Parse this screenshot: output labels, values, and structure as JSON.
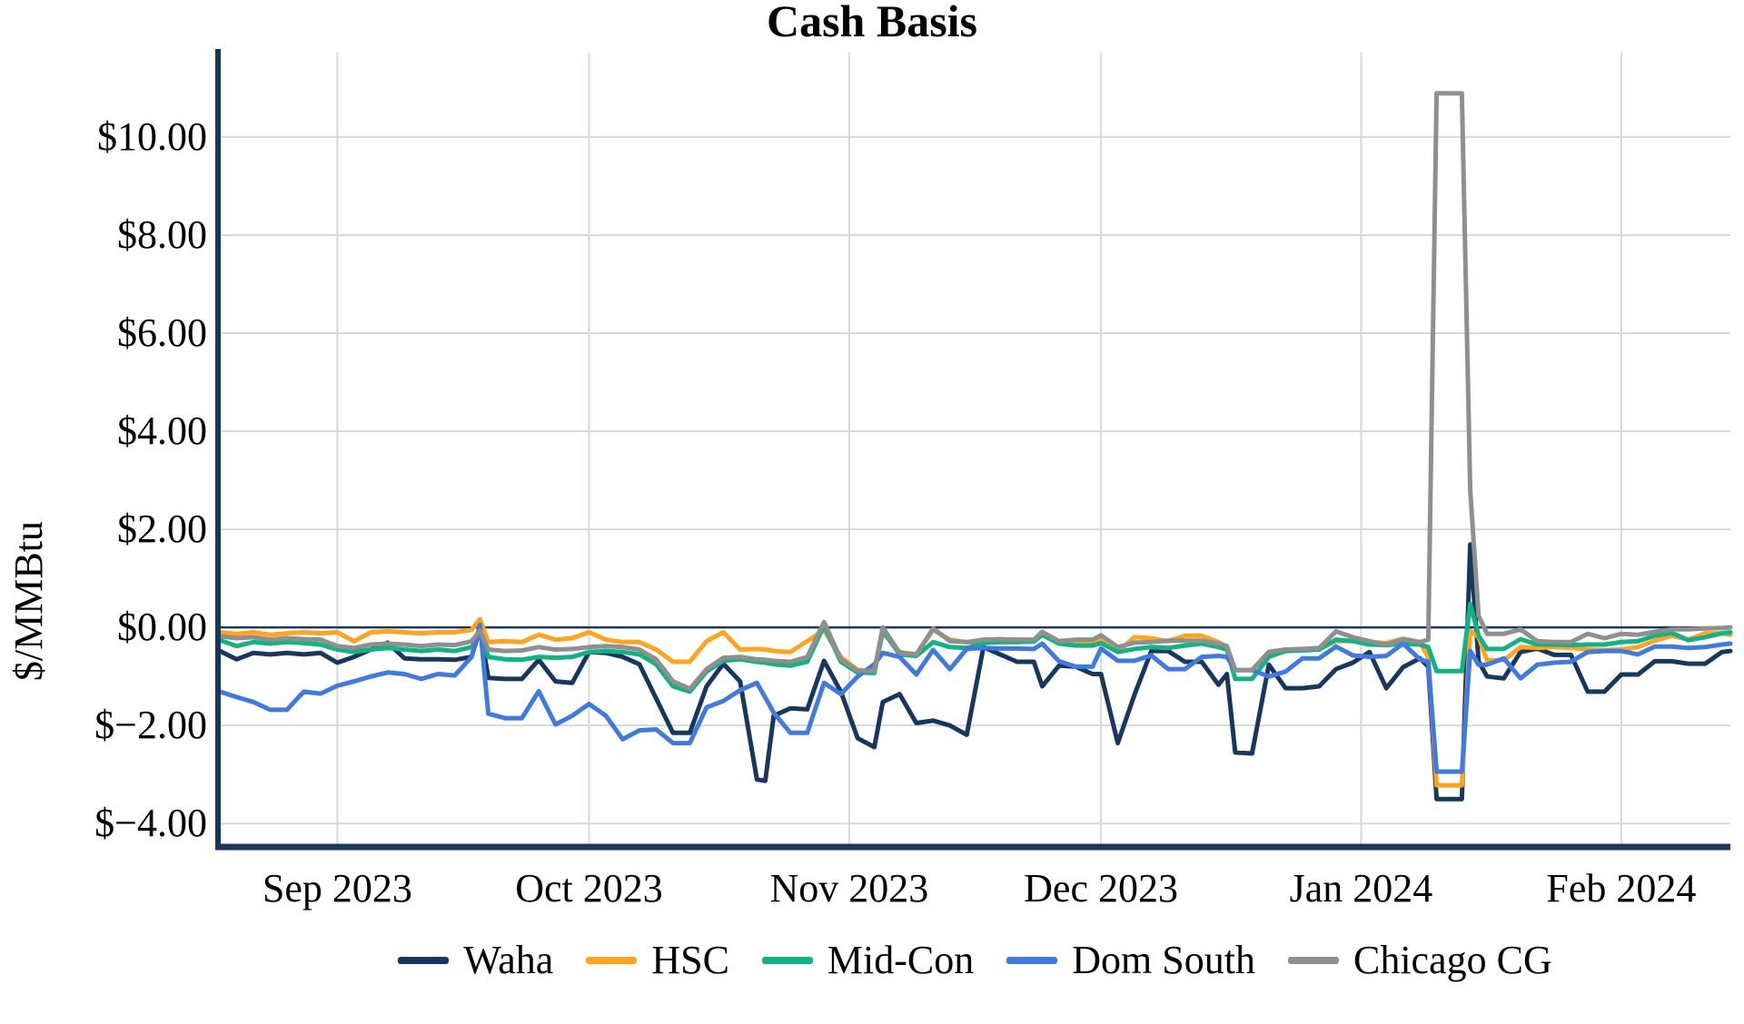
{
  "title": "Cash Basis",
  "y_axis": {
    "label": "$/MMBtu",
    "ticks": [
      {
        "label": "$10.00",
        "value": 10
      },
      {
        "label": "$8.00",
        "value": 8
      },
      {
        "label": "$6.00",
        "value": 6
      },
      {
        "label": "$4.00",
        "value": 4
      },
      {
        "label": "$2.00",
        "value": 2
      },
      {
        "label": "$0.00",
        "value": 0
      },
      {
        "label": "$−2.00",
        "value": -2
      },
      {
        "label": "$−4.00",
        "value": -4
      }
    ]
  },
  "x_axis": {
    "ticks": [
      {
        "label": "Sep 2023",
        "date": "2023-09-01"
      },
      {
        "label": "Oct 2023",
        "date": "2023-10-01"
      },
      {
        "label": "Nov 2023",
        "date": "2023-11-01"
      },
      {
        "label": "Dec 2023",
        "date": "2023-12-01"
      },
      {
        "label": "Jan 2024",
        "date": "2024-01-01"
      },
      {
        "label": "Feb 2024",
        "date": "2024-02-01"
      }
    ]
  },
  "colors": {
    "axis": "#17375E",
    "zero_line": "#17375E",
    "grid": "#D9D9D9",
    "background": "#FFFFFF"
  },
  "legend": {
    "items": [
      {
        "label": "Waha",
        "color": "#17375E"
      },
      {
        "label": "HSC",
        "color": "#FFA41C"
      },
      {
        "label": "Mid-Con",
        "color": "#10B384"
      },
      {
        "label": "Dom South",
        "color": "#3F7AE3"
      },
      {
        "label": "Chicago CG",
        "color": "#8F8F8F"
      }
    ]
  },
  "chart_data": {
    "type": "line",
    "title": "Cash Basis",
    "xlabel": "",
    "ylabel": "$/MMBtu",
    "xlim": [
      "2023-08-18",
      "2024-02-14"
    ],
    "ylim": [
      -4.44,
      11.72
    ],
    "grid": true,
    "zero_line": true,
    "legend_position": "bottom",
    "dates": [
      "2023-08-18",
      "2023-08-20",
      "2023-08-22",
      "2023-08-24",
      "2023-08-26",
      "2023-08-28",
      "2023-08-30",
      "2023-09-01",
      "2023-09-03",
      "2023-09-05",
      "2023-09-07",
      "2023-09-09",
      "2023-09-11",
      "2023-09-13",
      "2023-09-15",
      "2023-09-17",
      "2023-09-18",
      "2023-09-19",
      "2023-09-21",
      "2023-09-23",
      "2023-09-25",
      "2023-09-27",
      "2023-09-29",
      "2023-10-01",
      "2023-10-03",
      "2023-10-05",
      "2023-10-07",
      "2023-10-09",
      "2023-10-11",
      "2023-10-13",
      "2023-10-15",
      "2023-10-17",
      "2023-10-19",
      "2023-10-21",
      "2023-10-22",
      "2023-10-23",
      "2023-10-25",
      "2023-10-27",
      "2023-10-29",
      "2023-10-31",
      "2023-11-02",
      "2023-11-04",
      "2023-11-05",
      "2023-11-07",
      "2023-11-09",
      "2023-11-11",
      "2023-11-13",
      "2023-11-15",
      "2023-11-17",
      "2023-11-19",
      "2023-11-21",
      "2023-11-23",
      "2023-11-24",
      "2023-11-26",
      "2023-11-28",
      "2023-11-30",
      "2023-12-01",
      "2023-12-03",
      "2023-12-05",
      "2023-12-07",
      "2023-12-09",
      "2023-12-11",
      "2023-12-13",
      "2023-12-15",
      "2023-12-16",
      "2023-12-17",
      "2023-12-19",
      "2023-12-21",
      "2023-12-23",
      "2023-12-25",
      "2023-12-27",
      "2023-12-29",
      "2023-12-31",
      "2024-01-02",
      "2024-01-04",
      "2024-01-06",
      "2024-01-08",
      "2024-01-09",
      "2024-01-10",
      "2024-01-11",
      "2024-01-12",
      "2024-01-13",
      "2024-01-14",
      "2024-01-15",
      "2024-01-16",
      "2024-01-18",
      "2024-01-20",
      "2024-01-22",
      "2024-01-24",
      "2024-01-26",
      "2024-01-28",
      "2024-01-30",
      "2024-02-01",
      "2024-02-03",
      "2024-02-05",
      "2024-02-07",
      "2024-02-09",
      "2024-02-11",
      "2024-02-13",
      "2024-02-14"
    ],
    "series": [
      {
        "name": "Waha",
        "color": "#17375E",
        "values": [
          -0.48,
          -0.65,
          -0.52,
          -0.55,
          -0.52,
          -0.55,
          -0.52,
          -0.72,
          -0.6,
          -0.45,
          -0.31,
          -0.63,
          -0.65,
          -0.65,
          -0.66,
          -0.6,
          -0.02,
          -1.03,
          -1.05,
          -1.05,
          -0.66,
          -1.1,
          -1.13,
          -0.5,
          -0.52,
          -0.6,
          -0.75,
          -1.45,
          -2.15,
          -2.15,
          -1.2,
          -0.74,
          -1.1,
          -3.1,
          -3.13,
          -1.8,
          -1.65,
          -1.67,
          -0.68,
          -1.31,
          -2.26,
          -2.44,
          -1.52,
          -1.36,
          -1.95,
          -1.9,
          -2.0,
          -2.19,
          -0.4,
          -0.55,
          -0.7,
          -0.7,
          -1.2,
          -0.78,
          -0.8,
          -0.95,
          -0.95,
          -2.36,
          -1.37,
          -0.48,
          -0.48,
          -0.7,
          -0.7,
          -1.17,
          -0.95,
          -2.55,
          -2.57,
          -0.76,
          -1.24,
          -1.24,
          -1.2,
          -0.85,
          -0.72,
          -0.5,
          -1.24,
          -0.81,
          -0.63,
          -0.8,
          -3.5,
          -3.5,
          -3.5,
          -3.5,
          1.69,
          -0.69,
          -1.0,
          -1.04,
          -0.5,
          -0.43,
          -0.56,
          -0.56,
          -1.31,
          -1.31,
          -0.96,
          -0.96,
          -0.69,
          -0.69,
          -0.74,
          -0.74,
          -0.5,
          -0.48
        ]
      },
      {
        "name": "HSC",
        "color": "#FFA41C",
        "values": [
          -0.1,
          -0.13,
          -0.1,
          -0.15,
          -0.12,
          -0.1,
          -0.12,
          -0.1,
          -0.28,
          -0.1,
          -0.08,
          -0.1,
          -0.12,
          -0.1,
          -0.1,
          -0.05,
          0.17,
          -0.3,
          -0.28,
          -0.3,
          -0.15,
          -0.25,
          -0.22,
          -0.1,
          -0.25,
          -0.3,
          -0.3,
          -0.45,
          -0.7,
          -0.7,
          -0.28,
          -0.1,
          -0.45,
          -0.44,
          -0.45,
          -0.48,
          -0.5,
          -0.28,
          -0.06,
          -0.6,
          -0.87,
          -0.88,
          -0.1,
          -0.5,
          -0.55,
          -0.05,
          -0.25,
          -0.3,
          -0.3,
          -0.3,
          -0.3,
          -0.28,
          -0.15,
          -0.33,
          -0.3,
          -0.3,
          -0.25,
          -0.5,
          -0.2,
          -0.22,
          -0.28,
          -0.17,
          -0.17,
          -0.3,
          -0.4,
          -0.87,
          -0.87,
          -0.5,
          -0.45,
          -0.45,
          -0.44,
          -0.28,
          -0.28,
          -0.3,
          -0.32,
          -0.23,
          -0.3,
          -0.61,
          -3.22,
          -3.22,
          -3.22,
          -3.22,
          -0.07,
          -0.2,
          -0.67,
          -0.67,
          -0.4,
          -0.42,
          -0.4,
          -0.42,
          -0.45,
          -0.46,
          -0.45,
          -0.4,
          -0.27,
          -0.17,
          -0.25,
          -0.12,
          -0.12,
          -0.15
        ]
      },
      {
        "name": "Mid-Con",
        "color": "#10B384",
        "values": [
          -0.26,
          -0.38,
          -0.3,
          -0.33,
          -0.3,
          -0.32,
          -0.35,
          -0.45,
          -0.5,
          -0.45,
          -0.42,
          -0.45,
          -0.48,
          -0.45,
          -0.48,
          -0.4,
          -0.1,
          -0.6,
          -0.65,
          -0.66,
          -0.6,
          -0.62,
          -0.6,
          -0.5,
          -0.48,
          -0.5,
          -0.55,
          -0.75,
          -1.2,
          -1.31,
          -0.9,
          -0.68,
          -0.65,
          -0.7,
          -0.72,
          -0.75,
          -0.78,
          -0.7,
          0.04,
          -0.7,
          -0.92,
          -0.93,
          -0.06,
          -0.55,
          -0.58,
          -0.3,
          -0.4,
          -0.42,
          -0.32,
          -0.3,
          -0.3,
          -0.29,
          -0.15,
          -0.33,
          -0.37,
          -0.37,
          -0.32,
          -0.5,
          -0.44,
          -0.4,
          -0.42,
          -0.37,
          -0.33,
          -0.4,
          -0.45,
          -1.05,
          -1.05,
          -0.6,
          -0.48,
          -0.47,
          -0.45,
          -0.25,
          -0.28,
          -0.35,
          -0.36,
          -0.33,
          -0.35,
          -0.4,
          -0.89,
          -0.89,
          -0.89,
          -0.89,
          0.48,
          -0.17,
          -0.44,
          -0.44,
          -0.24,
          -0.35,
          -0.35,
          -0.36,
          -0.35,
          -0.35,
          -0.3,
          -0.28,
          -0.17,
          -0.11,
          -0.26,
          -0.2,
          -0.12,
          -0.1
        ]
      },
      {
        "name": "Dom South",
        "color": "#3F7AE3",
        "values": [
          -1.31,
          -1.42,
          -1.52,
          -1.68,
          -1.68,
          -1.31,
          -1.35,
          -1.19,
          -1.1,
          -1.0,
          -0.92,
          -0.95,
          -1.05,
          -0.95,
          -0.98,
          -0.6,
          0.05,
          -1.76,
          -1.85,
          -1.85,
          -1.3,
          -1.98,
          -1.8,
          -1.56,
          -1.8,
          -2.28,
          -2.1,
          -2.08,
          -2.36,
          -2.36,
          -1.63,
          -1.5,
          -1.28,
          -1.13,
          -1.43,
          -1.74,
          -2.15,
          -2.15,
          -1.13,
          -1.36,
          -1.0,
          -0.75,
          -0.52,
          -0.6,
          -0.96,
          -0.46,
          -0.85,
          -0.44,
          -0.42,
          -0.43,
          -0.43,
          -0.44,
          -0.33,
          -0.69,
          -0.8,
          -0.8,
          -0.43,
          -0.68,
          -0.68,
          -0.57,
          -0.85,
          -0.85,
          -0.6,
          -0.58,
          -0.6,
          -0.87,
          -0.87,
          -1.0,
          -0.9,
          -0.63,
          -0.63,
          -0.39,
          -0.57,
          -0.6,
          -0.58,
          -0.33,
          -0.65,
          -0.7,
          -2.94,
          -2.94,
          -2.94,
          -2.94,
          -0.48,
          -0.76,
          -0.76,
          -0.63,
          -1.04,
          -0.76,
          -0.72,
          -0.7,
          -0.5,
          -0.48,
          -0.48,
          -0.55,
          -0.39,
          -0.39,
          -0.42,
          -0.4,
          -0.35,
          -0.33
        ]
      },
      {
        "name": "Chicago CG",
        "color": "#8F8F8F",
        "values": [
          -0.18,
          -0.22,
          -0.2,
          -0.25,
          -0.22,
          -0.24,
          -0.25,
          -0.38,
          -0.42,
          -0.35,
          -0.33,
          -0.35,
          -0.38,
          -0.35,
          -0.36,
          -0.28,
          -0.07,
          -0.45,
          -0.48,
          -0.47,
          -0.4,
          -0.45,
          -0.44,
          -0.4,
          -0.38,
          -0.4,
          -0.45,
          -0.65,
          -1.1,
          -1.25,
          -0.85,
          -0.62,
          -0.6,
          -0.65,
          -0.66,
          -0.68,
          -0.7,
          -0.6,
          0.11,
          -0.65,
          -0.88,
          -0.88,
          0.0,
          -0.52,
          -0.55,
          -0.02,
          -0.28,
          -0.3,
          -0.25,
          -0.24,
          -0.25,
          -0.25,
          -0.09,
          -0.28,
          -0.25,
          -0.25,
          -0.16,
          -0.4,
          -0.31,
          -0.3,
          -0.27,
          -0.27,
          -0.27,
          -0.33,
          -0.38,
          -0.87,
          -0.87,
          -0.5,
          -0.45,
          -0.44,
          -0.42,
          -0.08,
          -0.2,
          -0.28,
          -0.35,
          -0.24,
          -0.3,
          -0.25,
          10.89,
          10.89,
          10.89,
          10.89,
          2.8,
          0.24,
          -0.13,
          -0.13,
          -0.04,
          -0.28,
          -0.3,
          -0.3,
          -0.13,
          -0.22,
          -0.13,
          -0.15,
          -0.09,
          -0.04,
          -0.04,
          -0.02,
          -0.01,
          0.0
        ]
      }
    ]
  }
}
